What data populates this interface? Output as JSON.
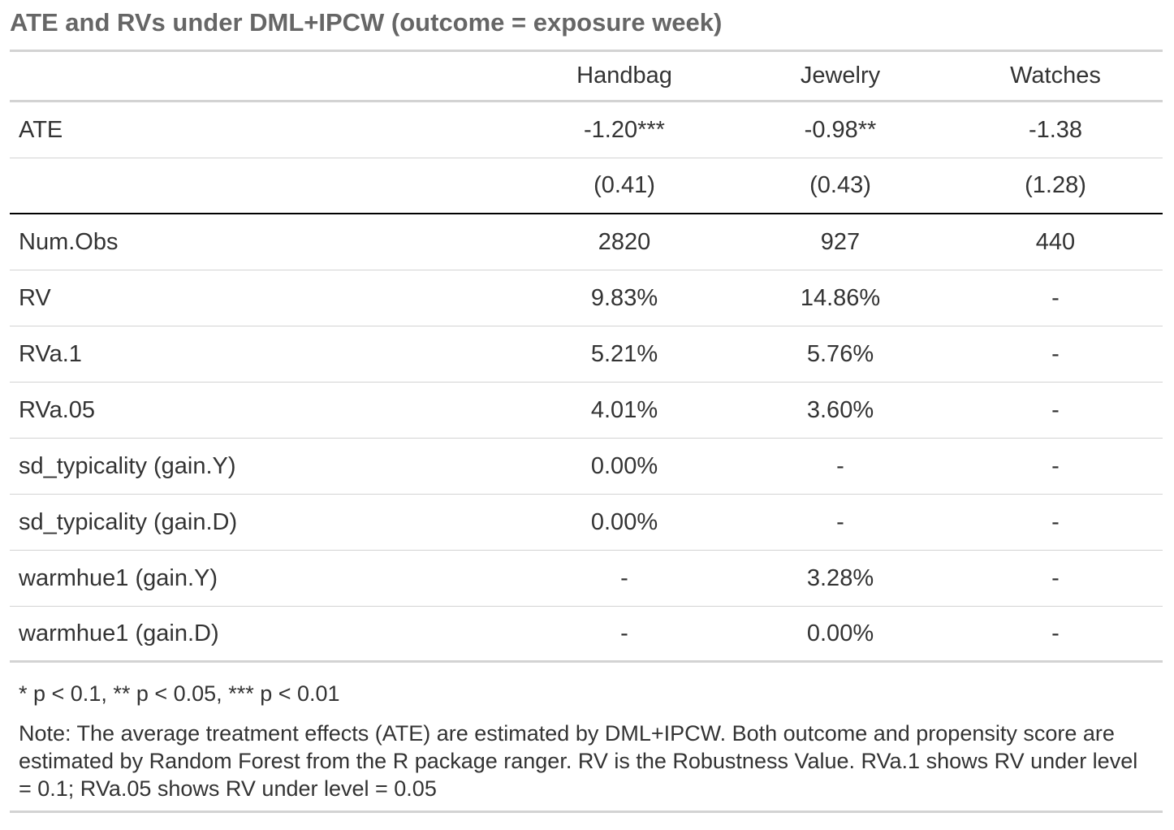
{
  "title": "ATE and RVs under DML+IPCW (outcome = exposure week)",
  "columns": [
    "",
    "Handbag",
    "Jewelry",
    "Watches"
  ],
  "rows": [
    {
      "label": "ATE",
      "values": [
        "-1.20***",
        "-0.98**",
        "-1.38"
      ]
    },
    {
      "label": "",
      "values": [
        "(0.41)",
        "(0.43)",
        "(1.28)"
      ]
    },
    {
      "label": "Num.Obs",
      "values": [
        "2820",
        "927",
        "440"
      ]
    },
    {
      "label": "RV",
      "values": [
        "9.83%",
        "14.86%",
        "-"
      ]
    },
    {
      "label": "RVa.1",
      "values": [
        "5.21%",
        "5.76%",
        "-"
      ]
    },
    {
      "label": "RVa.05",
      "values": [
        "4.01%",
        "3.60%",
        "-"
      ]
    },
    {
      "label": "sd_typicality (gain.Y)",
      "values": [
        "0.00%",
        "-",
        "-"
      ]
    },
    {
      "label": "sd_typicality (gain.D)",
      "values": [
        "0.00%",
        "-",
        "-"
      ]
    },
    {
      "label": "warmhue1 (gain.Y)",
      "values": [
        "-",
        "3.28%",
        "-"
      ]
    },
    {
      "label": "warmhue1 (gain.D)",
      "values": [
        "-",
        "0.00%",
        "-"
      ]
    }
  ],
  "footnote": "* p < 0.1, ** p < 0.05, *** p < 0.01",
  "note": "Note: The average treatment effects (ATE) are estimated by DML+IPCW. Both outcome and propensity score are estimated by Random Forest from the R package ranger. RV is the Robustness Value. RVa.1 shows RV under level = 0.1; RVa.05 shows RV under level = 0.05"
}
